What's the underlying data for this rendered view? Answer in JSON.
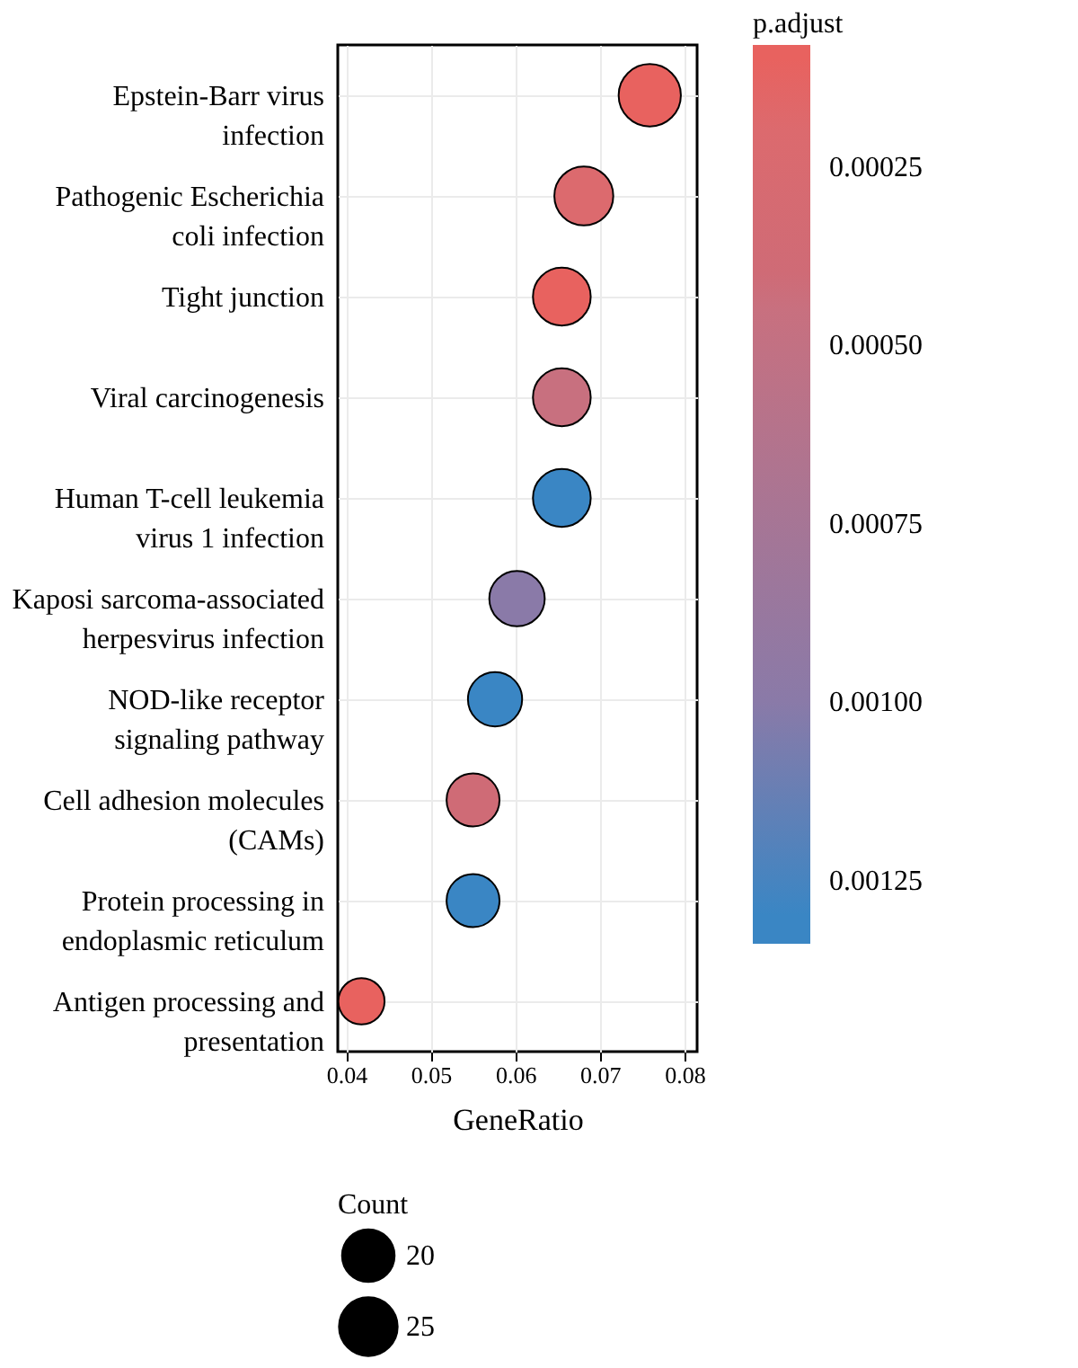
{
  "chart_data": {
    "type": "bubble",
    "xlabel": "GeneRatio",
    "legend_title": "Count",
    "clabel": "p.adjust",
    "categories": [
      "Epstein-Barr virus infection",
      "Pathogenic Escherichia coli infection",
      "Tight junction",
      "Viral carcinogenesis",
      "Human T-cell leukemia virus 1 infection",
      "Kaposi sarcoma-associated herpesvirus infection",
      "NOD-like receptor signaling pathway",
      "Cell adhesion molecules (CAMs)",
      "Protein processing in endoplasmic reticulum",
      "Antigen processing and presentation"
    ],
    "values": [
      0.0759,
      0.0681,
      0.0655,
      0.0655,
      0.0655,
      0.0602,
      0.0576,
      0.055,
      0.055,
      0.0418
    ],
    "sizes": [
      29,
      26,
      25,
      25,
      25,
      23,
      22,
      21,
      21,
      16
    ],
    "size_legend": [
      20,
      25
    ],
    "cvalues": [
      0.0001,
      0.0002,
      0.0001,
      0.00045,
      0.0013,
      0.001,
      0.0013,
      0.0004,
      0.0013,
      0.0001
    ],
    "clim": [
      8e-05,
      0.00134
    ],
    "cticks": [
      0.00025,
      {
        "value": 0.0005,
        "label": "0.00050"
      },
      0.00075,
      {
        "value": 0.001,
        "label": "0.00100"
      },
      0.00125
    ],
    "colors": [
      "#e8625f",
      "#dc6a6e",
      "#e8625f",
      "#c8707f",
      "#3a86c4",
      "#8a7aa8",
      "#3a86c4",
      "#cf6b76",
      "#3a86c4",
      "#e8625f"
    ],
    "orientation": "horizontal",
    "xlim": [
      0.039,
      0.0815
    ],
    "xticks": [
      0.04,
      0.05,
      0.06,
      0.07,
      0.08
    ],
    "grid": true,
    "marker": "circle"
  }
}
